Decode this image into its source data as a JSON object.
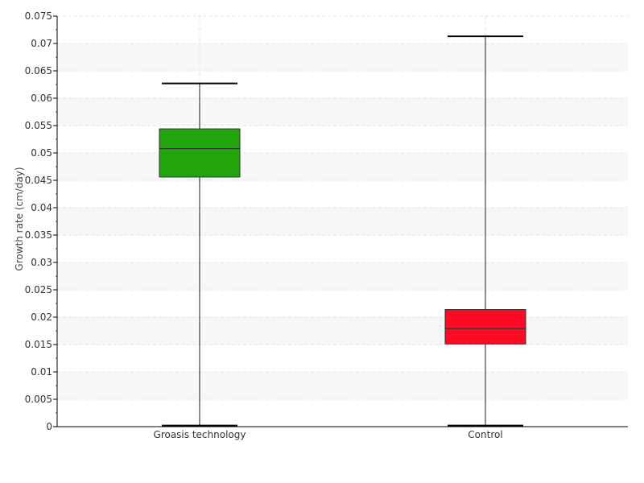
{
  "chart_data": {
    "type": "box",
    "title": "",
    "xlabel": "",
    "ylabel": "Growth rate (cm/day)",
    "ylim": [
      0,
      0.075
    ],
    "ytick_step": 0.005,
    "yticks": [
      "0",
      "0.005",
      "0.01",
      "0.015",
      "0.02",
      "0.025",
      "0.03",
      "0.035",
      "0.04",
      "0.045",
      "0.05",
      "0.055",
      "0.06",
      "0.065",
      "0.07",
      "0.075"
    ],
    "grid": true,
    "legend": "none",
    "categories": [
      "Groasis technology",
      "Control"
    ],
    "series": [
      {
        "category": "Groasis technology",
        "whisker_low": 0.0002,
        "q1": 0.0456,
        "median": 0.0508,
        "q3": 0.0544,
        "whisker_high": 0.0627,
        "color": "#22a40c"
      },
      {
        "category": "Control",
        "whisker_low": 0.0002,
        "q1": 0.0151,
        "median": 0.0179,
        "q3": 0.0214,
        "whisker_high": 0.0713,
        "color": "#ff0a25"
      }
    ],
    "colors": {
      "band": "#f7f7f7",
      "gridline": "#e6e6e6",
      "axis": "#000000",
      "minor_tick": "#cc3355",
      "whisker": "#444444"
    }
  }
}
